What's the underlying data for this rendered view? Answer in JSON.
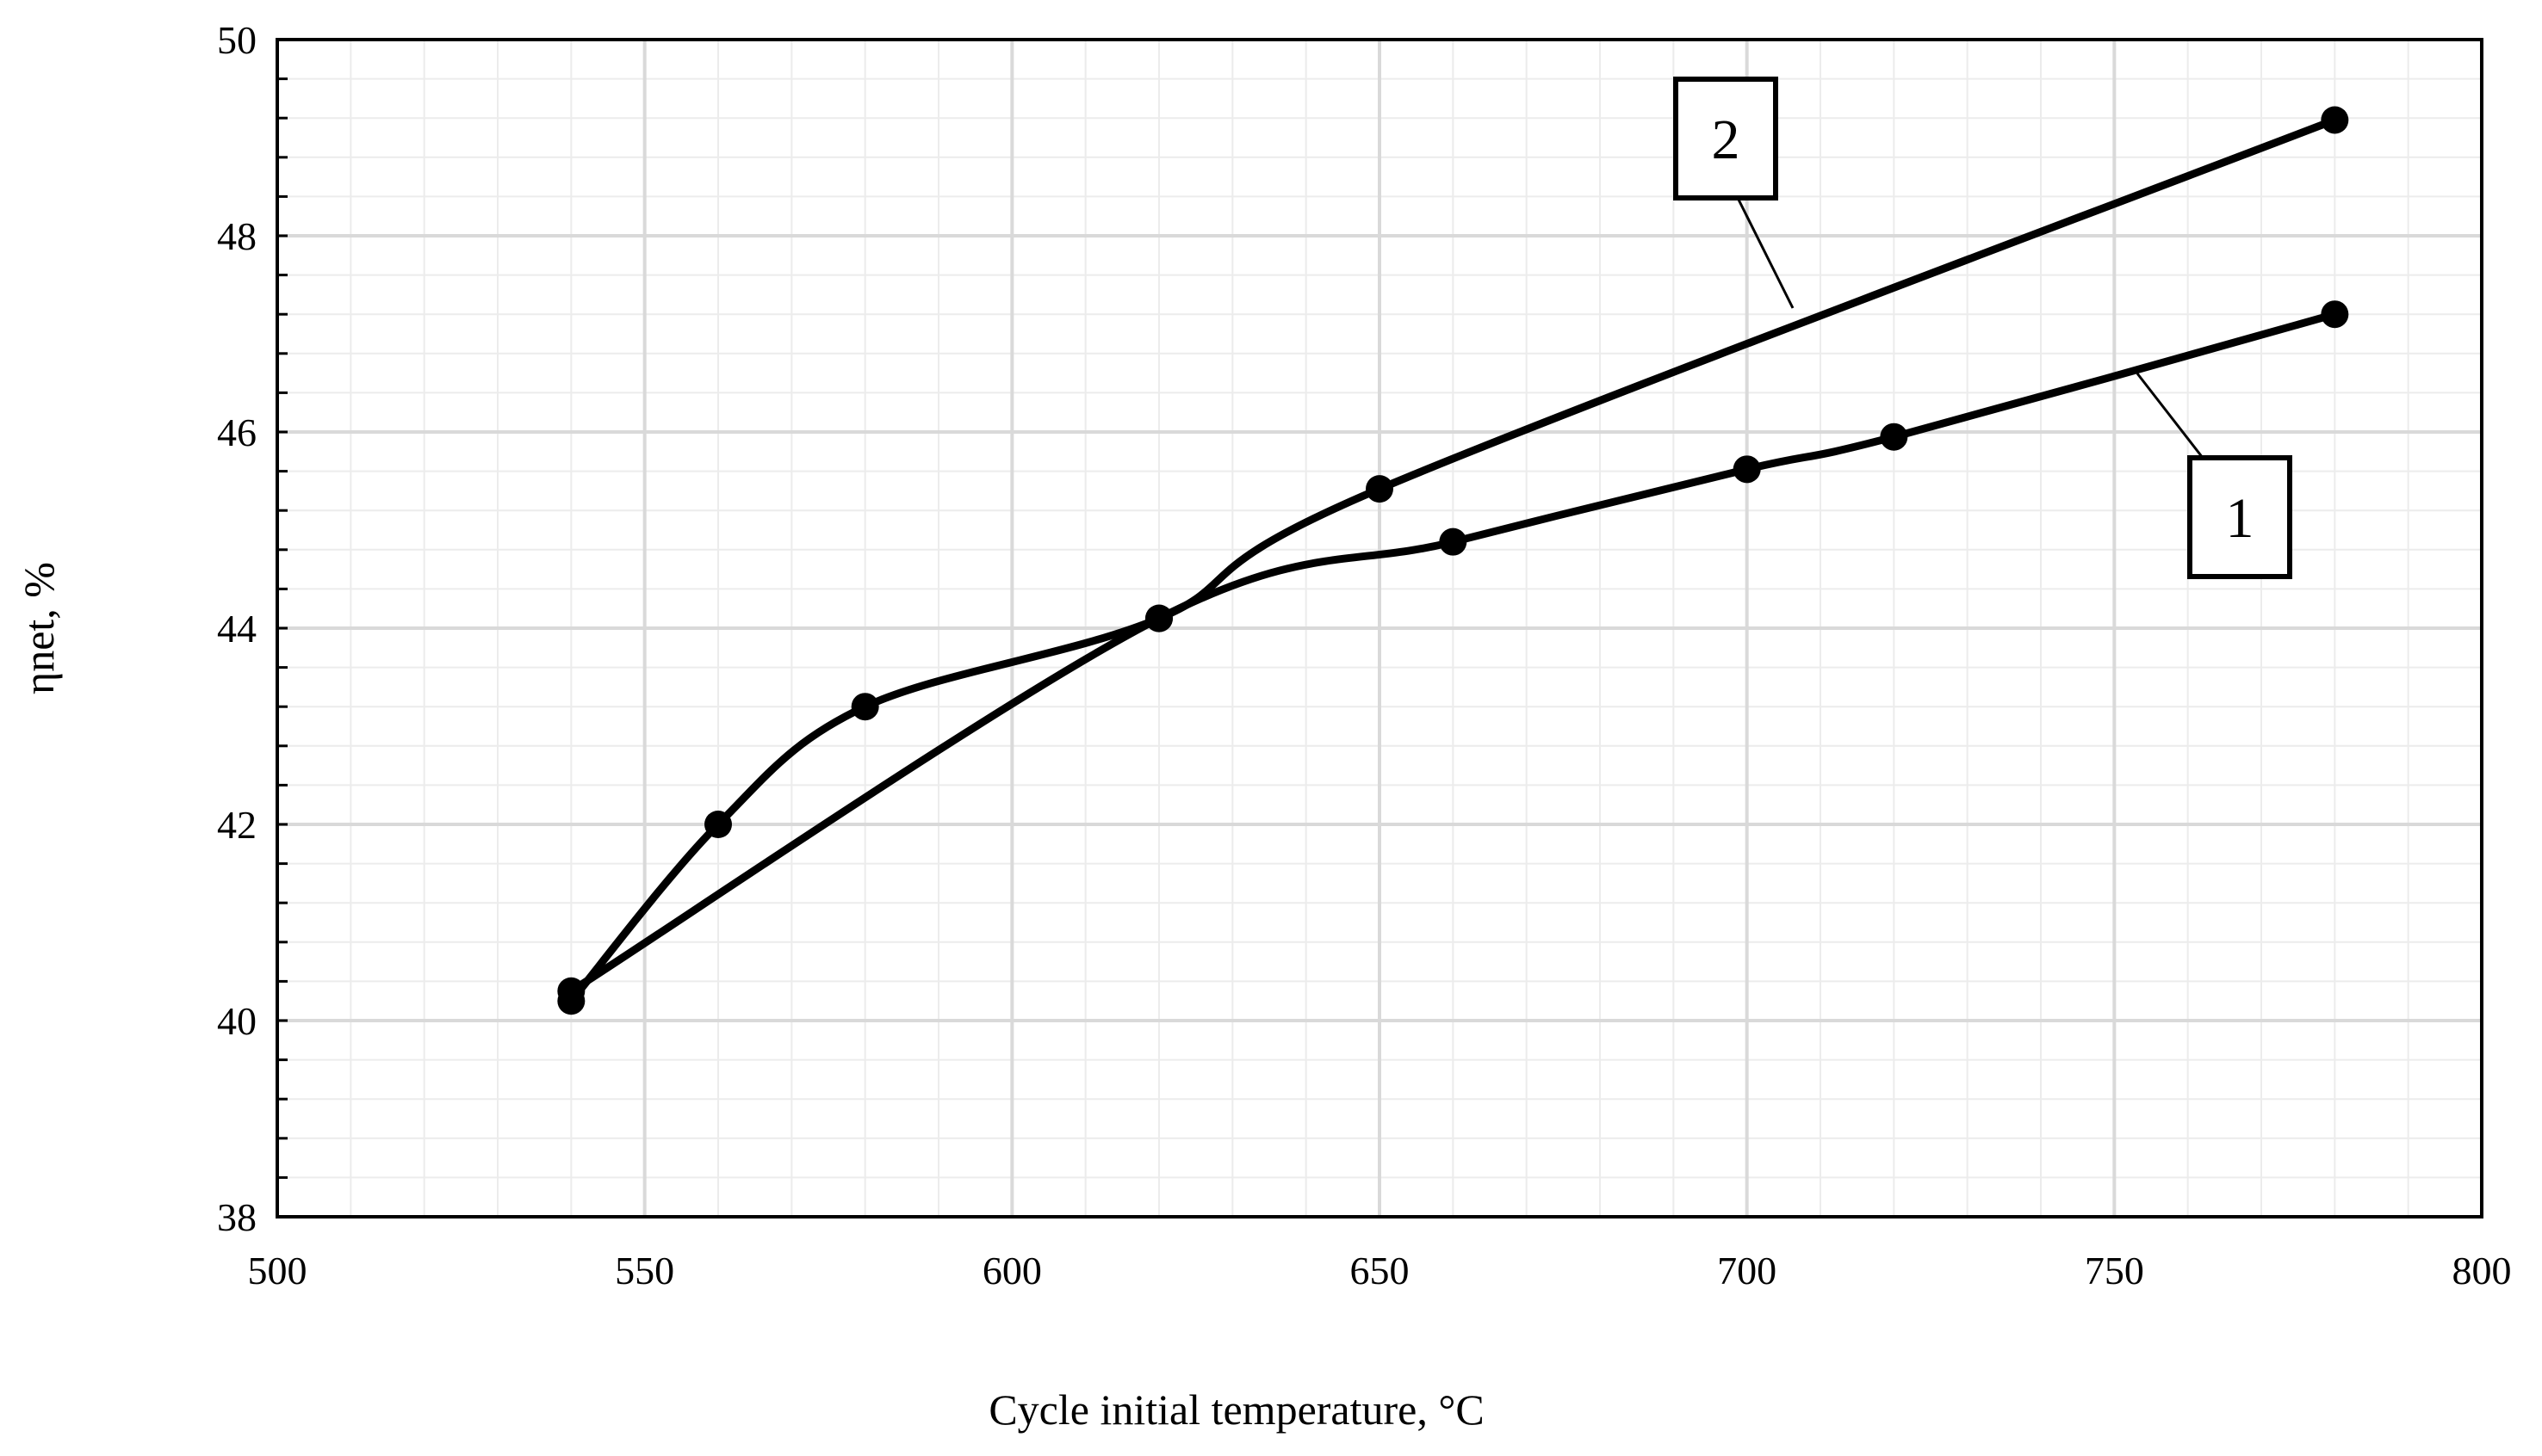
{
  "chart_data": {
    "type": "line",
    "title": "",
    "xlabel": "Cycle initial temperature, °C",
    "ylabel": "ηnet, %",
    "xlim": [
      500,
      800
    ],
    "ylim": [
      38,
      50
    ],
    "x_ticks": [
      "500",
      "550",
      "600",
      "650",
      "700",
      "750",
      "800"
    ],
    "y_ticks": [
      "38",
      "40",
      "42",
      "44",
      "46",
      "48",
      "50"
    ],
    "grid": true,
    "legend": "none",
    "series": [
      {
        "name": "1",
        "label": "1",
        "x": [
          540,
          620,
          660,
          700,
          720,
          780
        ],
        "y": [
          40.3,
          44.1,
          44.88,
          45.62,
          45.95,
          47.2
        ]
      },
      {
        "name": "2",
        "label": "2",
        "x": [
          540,
          560,
          580,
          620,
          650,
          780
        ],
        "y": [
          40.2,
          42.0,
          43.2,
          44.1,
          45.42,
          49.18
        ]
      }
    ],
    "line_color": "#000000",
    "grid_major_color": "#d9d9d9",
    "grid_minor_color": "#ececec"
  }
}
